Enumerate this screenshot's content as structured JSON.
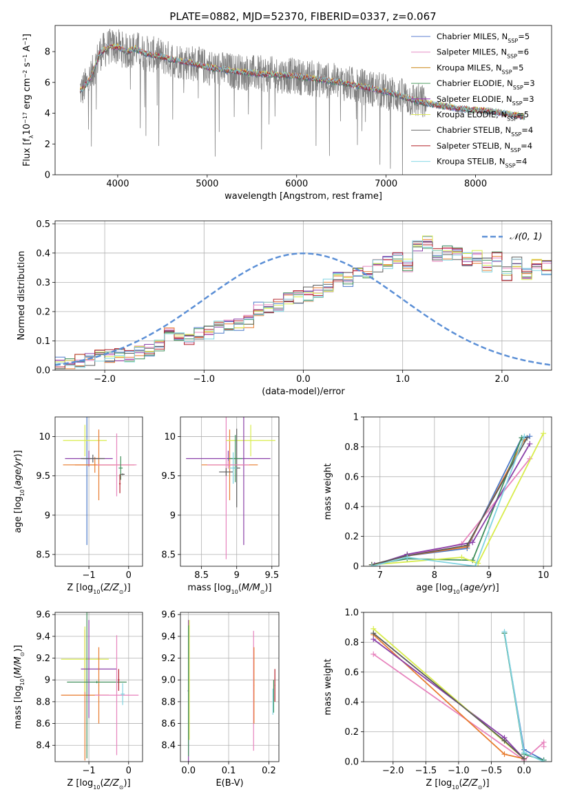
{
  "figure": {
    "title": "PLATE=0882, MJD=52370, FIBERID=0337, z=0.067"
  },
  "colors": [
    "#5d7fd0",
    "#e58cc4",
    "#cc8a1c",
    "#4f9d62",
    "#9b2fb8",
    "#dde85a",
    "#666666",
    "#b01c24",
    "#86d8e6"
  ],
  "model_colors": [
    "#4a78c9",
    "#e783bd",
    "#e87b2e",
    "#3f8f5a",
    "#8a3fa8",
    "#d8ec4a",
    "#5a5a5a",
    "#b3202a",
    "#7fd3e0"
  ],
  "chart_data": [
    {
      "id": "spectrum",
      "type": "line",
      "xlabel": "wavelength [Angstrom, rest frame]",
      "ylabel": "Flux [f_λ10^-17 erg cm^-2 s^-1 A^-1]",
      "xlim": [
        3300,
        8850
      ],
      "ylim": [
        0,
        9.7
      ],
      "xticks": [
        4000,
        5000,
        6000,
        7000,
        8000
      ],
      "yticks": [
        0,
        2,
        4,
        6,
        8
      ],
      "grid": false,
      "legend_position": "top-right",
      "legend": [
        {
          "name": "Chabrier MILES",
          "n": "5"
        },
        {
          "name": "Salpeter MILES",
          "n": "6"
        },
        {
          "name": "Kroupa MILES",
          "n": "5"
        },
        {
          "name": "Chabrier ELODIE",
          "n": "3"
        },
        {
          "name": "Salpeter ELODIE",
          "n": "3"
        },
        {
          "name": "Kroupa ELODIE",
          "n": "5"
        },
        {
          "name": "Chabrier STELIB",
          "n": "4"
        },
        {
          "name": "Salpeter STELIB",
          "n": "4"
        },
        {
          "name": "Kroupa STELIB",
          "n": "4"
        }
      ],
      "continuum_anchors": {
        "x": [
          3600,
          3700,
          3800,
          3900,
          4000,
          4100,
          4200,
          4300,
          4400,
          4600,
          4800,
          5000,
          5200,
          5500,
          6000,
          6500,
          7000,
          7400,
          7800,
          8200,
          8500
        ],
        "y": [
          5.5,
          6.3,
          7.9,
          8.3,
          8.3,
          8.0,
          8.2,
          7.9,
          7.8,
          7.5,
          7.3,
          7.0,
          6.8,
          6.6,
          6.4,
          6.0,
          5.4,
          4.7,
          4.3,
          4.1,
          3.8
        ]
      }
    },
    {
      "id": "residuals",
      "type": "histogram",
      "xlabel": "(data-model)/error",
      "ylabel": "Normed distribution",
      "xlim": [
        -2.5,
        2.5
      ],
      "ylim": [
        0,
        0.51
      ],
      "xticks": [
        -2,
        -1,
        0,
        1,
        2
      ],
      "yticks": [
        0.0,
        0.1,
        0.2,
        0.3,
        0.4,
        0.5
      ],
      "grid": true,
      "legend_position": "top-right",
      "reference_curve": {
        "name": "N(0,1)",
        "mean": 0,
        "sigma": 1
      },
      "bin_width": 0.1,
      "bin_start": -2.5,
      "base_heights": [
        0.02,
        0.02,
        0.03,
        0.04,
        0.05,
        0.05,
        0.05,
        0.05,
        0.06,
        0.07,
        0.08,
        0.13,
        0.12,
        0.11,
        0.13,
        0.13,
        0.15,
        0.15,
        0.16,
        0.17,
        0.21,
        0.22,
        0.22,
        0.24,
        0.25,
        0.26,
        0.27,
        0.29,
        0.31,
        0.31,
        0.33,
        0.34,
        0.36,
        0.37,
        0.38,
        0.36,
        0.43,
        0.44,
        0.39,
        0.4,
        0.4,
        0.38,
        0.39,
        0.36,
        0.38,
        0.33,
        0.37,
        0.33,
        0.36,
        0.35,
        0.34,
        0.32,
        0.3,
        0.28,
        0.27,
        0.25,
        0.24,
        0.22,
        0.23,
        0.21,
        0.18,
        0.16,
        0.15,
        0.13,
        0.12,
        0.11,
        0.11,
        0.09,
        0.08,
        0.08,
        0.09,
        0.08,
        0.07,
        0.06,
        0.05,
        0.05,
        0.04,
        0.04,
        0.04,
        0.03,
        0.03
      ]
    },
    {
      "id": "age_vs_Z",
      "type": "scatter",
      "xlabel": "Z [log10(Z/Z⊙)]",
      "ylabel": "age [log10(age/yr)]",
      "xlim": [
        -1.85,
        0.35
      ],
      "ylim": [
        8.35,
        10.25
      ],
      "xticks": [
        -1,
        0
      ],
      "yticks": [
        8.5,
        9.0,
        9.5,
        10.0
      ],
      "grid": true,
      "points": [
        {
          "x": -1.05,
          "y": 9.72,
          "xerr": 0.1,
          "yerr": 1.1,
          "c": 0
        },
        {
          "x": -0.85,
          "y": 9.64,
          "xerr": 0.5,
          "yerr": 0.1,
          "c": 2
        },
        {
          "x": -1.0,
          "y": 9.72,
          "xerr": 0.6,
          "yerr": 0.1,
          "c": 4
        },
        {
          "x": -1.1,
          "y": 9.95,
          "xerr": 0.55,
          "yerr": 0.2,
          "c": 5
        },
        {
          "x": -0.75,
          "y": 9.64,
          "xerr": 0.9,
          "yerr": 0.45,
          "c": 2
        },
        {
          "x": -0.3,
          "y": 9.64,
          "xerr": 0.5,
          "yerr": 0.4,
          "c": 1
        },
        {
          "x": -0.2,
          "y": 9.6,
          "xerr": 0.05,
          "yerr": 0.15,
          "c": 3
        },
        {
          "x": -0.22,
          "y": 9.4,
          "xerr": 0.02,
          "yerr": 0.12,
          "c": 7
        },
        {
          "x": -0.15,
          "y": 9.52,
          "xerr": 0.05,
          "yerr": 0.01,
          "c": 6
        },
        {
          "x": -0.9,
          "y": 9.72,
          "xerr": 0.3,
          "yerr": 0.05,
          "c": 6
        }
      ]
    },
    {
      "id": "age_vs_mass",
      "type": "scatter",
      "xlabel": "mass [log10(M/M⊙)]",
      "ylabel": "",
      "xlim": [
        8.2,
        9.6
      ],
      "ylim": [
        8.35,
        10.25
      ],
      "xticks": [
        8.5,
        9.0,
        9.5
      ],
      "yticks": [
        8.5,
        9.0,
        9.5,
        10.0
      ],
      "grid": true,
      "points": [
        {
          "x": 8.88,
          "y": 9.72,
          "xerr": 0.6,
          "yerr": 0.1,
          "c": 4
        },
        {
          "x": 8.9,
          "y": 9.64,
          "xerr": 0.4,
          "yerr": 0.45,
          "c": 2
        },
        {
          "x": 8.85,
          "y": 9.64,
          "xerr": 0.01,
          "yerr": 1.2,
          "c": 1
        },
        {
          "x": 9.2,
          "y": 9.95,
          "xerr": 0.35,
          "yerr": 0.2,
          "c": 5
        },
        {
          "x": 9.1,
          "y": 9.72,
          "xerr": 0.01,
          "yerr": 1.1,
          "c": 4
        },
        {
          "x": 9.0,
          "y": 9.6,
          "xerr": 0.05,
          "yerr": 0.5,
          "c": 6
        },
        {
          "x": 8.98,
          "y": 9.72,
          "xerr": 0.1,
          "yerr": 0.3,
          "c": 3
        },
        {
          "x": 8.85,
          "y": 9.55,
          "xerr": 0.1,
          "yerr": 0.05,
          "c": 6
        },
        {
          "x": 8.95,
          "y": 9.6,
          "xerr": 0.05,
          "yerr": 0.2,
          "c": 8
        },
        {
          "x": 8.88,
          "y": 9.64,
          "xerr": 0.3,
          "yerr": 0.05,
          "c": 1
        }
      ]
    },
    {
      "id": "weight_vs_age",
      "type": "line",
      "xlabel": "age [log10(age/yr)]",
      "ylabel": "mass weight",
      "xlim": [
        6.7,
        10.15
      ],
      "ylim": [
        0,
        1.0
      ],
      "xticks": [
        7,
        8,
        9,
        10
      ],
      "yticks": [
        0.0,
        0.2,
        0.4,
        0.6,
        0.8,
        1.0
      ],
      "grid": true,
      "series": [
        {
          "c": 0,
          "x": [
            6.85,
            7.5,
            8.6,
            9.6,
            9.75
          ],
          "y": [
            0.01,
            0.07,
            0.12,
            0.86,
            0.87
          ]
        },
        {
          "c": 1,
          "x": [
            6.85,
            7.5,
            8.5,
            9.75
          ],
          "y": [
            0.01,
            0.07,
            0.15,
            0.72
          ]
        },
        {
          "c": 2,
          "x": [
            6.85,
            7.5,
            8.6,
            9.65
          ],
          "y": [
            0.01,
            0.07,
            0.13,
            0.85
          ]
        },
        {
          "c": 3,
          "x": [
            6.85,
            7.5,
            8.7,
            9.6
          ],
          "y": [
            0.01,
            0.05,
            0.04,
            0.86
          ]
        },
        {
          "c": 4,
          "x": [
            6.9,
            7.5,
            8.7,
            9.75
          ],
          "y": [
            0.01,
            0.08,
            0.16,
            0.82
          ]
        },
        {
          "c": 5,
          "x": [
            6.85,
            8.5,
            8.8,
            10.0
          ],
          "y": [
            0.01,
            0.06,
            0.02,
            0.89
          ]
        },
        {
          "c": 6,
          "x": [
            6.85,
            7.5,
            8.6,
            9.7
          ],
          "y": [
            0.01,
            0.07,
            0.14,
            0.86
          ]
        },
        {
          "c": 8,
          "x": [
            6.85,
            7.5,
            8.75,
            9.65
          ],
          "y": [
            0.0,
            0.06,
            0.0,
            0.87
          ]
        }
      ]
    },
    {
      "id": "mass_vs_Z",
      "type": "scatter",
      "xlabel": "Z [log10(Z/Z⊙)]",
      "ylabel": "mass [log10(M/M⊙)]",
      "xlim": [
        -1.85,
        0.35
      ],
      "ylim": [
        8.25,
        9.62
      ],
      "xticks": [
        -1,
        0
      ],
      "yticks": [
        8.4,
        8.6,
        8.8,
        9.0,
        9.2,
        9.4,
        9.6
      ],
      "grid": true,
      "points": [
        {
          "x": -1.1,
          "y": 8.86,
          "xerr": 0.6,
          "yerr": 0.6,
          "c": 2
        },
        {
          "x": -1.1,
          "y": 9.19,
          "xerr": 0.6,
          "yerr": 0.3,
          "c": 5
        },
        {
          "x": -0.75,
          "y": 9.1,
          "xerr": 0.45,
          "yerr": 0.01,
          "c": 4
        },
        {
          "x": -0.75,
          "y": 8.95,
          "xerr": 0.01,
          "yerr": 0.35,
          "c": 2
        },
        {
          "x": -0.8,
          "y": 8.98,
          "xerr": 0.75,
          "yerr": 0.01,
          "c": 3
        },
        {
          "x": -0.3,
          "y": 8.86,
          "xerr": 0.55,
          "yerr": 0.55,
          "c": 1
        },
        {
          "x": -0.25,
          "y": 9.0,
          "xerr": 0.02,
          "yerr": 0.1,
          "c": 7
        },
        {
          "x": -0.15,
          "y": 8.87,
          "xerr": 0.05,
          "yerr": 0.1,
          "c": 8
        },
        {
          "x": -1.05,
          "y": 8.98,
          "xerr": 0.01,
          "yerr": 0.7,
          "c": 3
        },
        {
          "x": -1.0,
          "y": 9.1,
          "xerr": 0.01,
          "yerr": 0.45,
          "c": 4
        }
      ]
    },
    {
      "id": "mass_vs_EBV",
      "type": "scatter",
      "xlabel": "E(B-V)",
      "ylabel": "",
      "xlim": [
        -0.02,
        0.225
      ],
      "ylim": [
        8.25,
        9.62
      ],
      "xticks": [
        0.0,
        0.1,
        0.2
      ],
      "yticks": [
        8.4,
        8.6,
        8.8,
        9.0,
        9.2,
        9.4,
        9.6
      ],
      "grid": true,
      "points": [
        {
          "x": 0.0,
          "y": 8.9,
          "xerr": 0.002,
          "yerr": 0.65,
          "c": 4
        },
        {
          "x": 0.002,
          "y": 9.0,
          "xerr": 0.002,
          "yerr": 0.55,
          "c": 5
        },
        {
          "x": 0.0,
          "y": 8.9,
          "xerr": 0.001,
          "yerr": 0.6,
          "c": 3
        },
        {
          "x": 0.162,
          "y": 8.9,
          "xerr": 0.001,
          "yerr": 0.55,
          "c": 1
        },
        {
          "x": 0.163,
          "y": 8.95,
          "xerr": 0.001,
          "yerr": 0.35,
          "c": 2
        },
        {
          "x": 0.212,
          "y": 8.85,
          "xerr": 0.001,
          "yerr": 0.15,
          "c": 3
        },
        {
          "x": 0.215,
          "y": 8.95,
          "xerr": 0.001,
          "yerr": 0.15,
          "c": 7
        },
        {
          "x": 0.21,
          "y": 8.8,
          "xerr": 0.001,
          "yerr": 0.12,
          "c": 8
        }
      ]
    },
    {
      "id": "weight_vs_Z",
      "type": "line",
      "xlabel": "Z [log10(Z/Z⊙)]",
      "ylabel": "mass weight",
      "xlim": [
        -2.45,
        0.42
      ],
      "ylim": [
        0,
        1.0
      ],
      "xticks": [
        -2.0,
        -1.5,
        -1.0,
        -0.5,
        0.0
      ],
      "yticks": [
        0.0,
        0.2,
        0.4,
        0.6,
        0.8,
        1.0
      ],
      "grid": true,
      "series": [
        {
          "c": 0,
          "x": [
            -0.3,
            0.0,
            0.3
          ],
          "y": [
            0.86,
            0.08,
            0.01
          ]
        },
        {
          "c": 1,
          "x": [
            -2.3,
            0.0,
            0.3,
            0.3
          ],
          "y": [
            0.72,
            0.01,
            0.13,
            0.1
          ]
        },
        {
          "c": 2,
          "x": [
            -2.3,
            -0.3,
            0.0
          ],
          "y": [
            0.85,
            0.05,
            0.02
          ]
        },
        {
          "c": 3,
          "x": [
            -0.3,
            0.0,
            0.3
          ],
          "y": [
            0.86,
            0.05,
            0.01
          ]
        },
        {
          "c": 4,
          "x": [
            -2.3,
            -0.3,
            0.0
          ],
          "y": [
            0.82,
            0.16,
            0.02
          ]
        },
        {
          "c": 5,
          "x": [
            -2.3,
            0.0
          ],
          "y": [
            0.89,
            0.02
          ]
        },
        {
          "c": 6,
          "x": [
            -2.3,
            -0.3,
            0.0
          ],
          "y": [
            0.86,
            0.14,
            0.02
          ]
        },
        {
          "c": 8,
          "x": [
            -0.3,
            0.0,
            0.3
          ],
          "y": [
            0.87,
            0.06,
            0.0
          ]
        }
      ]
    }
  ]
}
